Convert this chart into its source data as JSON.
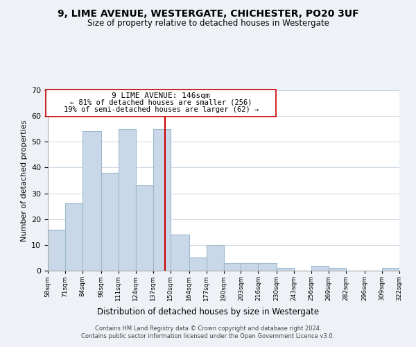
{
  "title": "9, LIME AVENUE, WESTERGATE, CHICHESTER, PO20 3UF",
  "subtitle": "Size of property relative to detached houses in Westergate",
  "xlabel": "Distribution of detached houses by size in Westergate",
  "ylabel": "Number of detached properties",
  "bar_color": "#c8d8e8",
  "bar_edge_color": "#a0b8cc",
  "vline_x": 146,
  "vline_color": "#cc0000",
  "bins": [
    58,
    71,
    84,
    98,
    111,
    124,
    137,
    150,
    164,
    177,
    190,
    203,
    216,
    230,
    243,
    256,
    269,
    282,
    296,
    309,
    322
  ],
  "bin_labels": [
    "58sqm",
    "71sqm",
    "84sqm",
    "98sqm",
    "111sqm",
    "124sqm",
    "137sqm",
    "150sqm",
    "164sqm",
    "177sqm",
    "190sqm",
    "203sqm",
    "216sqm",
    "230sqm",
    "243sqm",
    "256sqm",
    "269sqm",
    "282sqm",
    "296sqm",
    "309sqm",
    "322sqm"
  ],
  "bar_heights": [
    16,
    26,
    54,
    38,
    55,
    33,
    55,
    14,
    5,
    10,
    3,
    3,
    3,
    1,
    0,
    2,
    1,
    0,
    0,
    1
  ],
  "ylim": [
    0,
    70
  ],
  "yticks": [
    0,
    10,
    20,
    30,
    40,
    50,
    60,
    70
  ],
  "footer_line1": "Contains HM Land Registry data © Crown copyright and database right 2024.",
  "footer_line2": "Contains public sector information licensed under the Open Government Licence v3.0.",
  "background_color": "#eef2f7",
  "plot_bg_color": "#ffffff"
}
